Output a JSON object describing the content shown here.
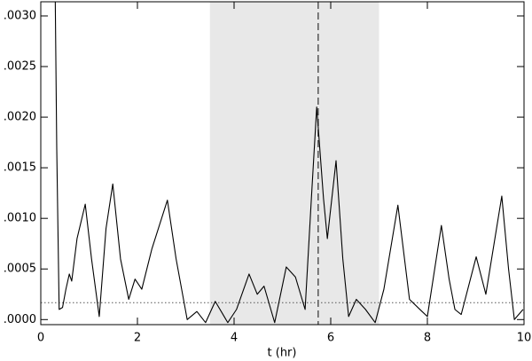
{
  "chart_data": {
    "type": "line",
    "xlabel": "t (hr)",
    "xlim": [
      0,
      10
    ],
    "xticks": [
      0,
      2,
      4,
      6,
      8,
      10
    ],
    "ylim": [
      -5e-05,
      0.00314
    ],
    "yticks": [
      {
        "value": 0,
        "label": ".0000"
      },
      {
        "value": 0.0005,
        "label": ".0005"
      },
      {
        "value": 0.001,
        "label": ".0010"
      },
      {
        "value": 0.0015,
        "label": ".0015"
      },
      {
        "value": 0.002,
        "label": ".0020"
      },
      {
        "value": 0.0025,
        "label": ".0025"
      },
      {
        "value": 0.003,
        "label": ".0030"
      }
    ],
    "shade": [
      3.5,
      7.0
    ],
    "shade_color": "#e8e8e8",
    "vline": 5.74,
    "hline": 0.000167,
    "color": "#000000",
    "x": [
      0.3,
      0.33,
      0.38,
      0.45,
      0.52,
      0.59,
      0.64,
      0.75,
      0.92,
      1.05,
      1.21,
      1.35,
      1.49,
      1.65,
      1.82,
      1.95,
      2.09,
      2.3,
      2.62,
      2.8,
      3.03,
      3.23,
      3.41,
      3.61,
      3.87,
      4.05,
      4.31,
      4.48,
      4.62,
      4.84,
      5.08,
      5.27,
      5.47,
      5.6,
      5.71,
      5.85,
      5.93,
      6.11,
      6.25,
      6.37,
      6.53,
      6.72,
      6.92,
      7.1,
      7.39,
      7.63,
      7.89,
      8.0,
      8.29,
      8.45,
      8.57,
      8.7,
      9.01,
      9.21,
      9.54,
      9.68,
      9.8,
      9.98
    ],
    "values": [
      0.00314,
      0.0017,
      0.0001,
      0.00012,
      0.0003,
      0.00045,
      0.00038,
      0.0008,
      0.00114,
      0.0006,
      3e-05,
      0.0009,
      0.00134,
      0.0006,
      0.0002,
      0.0004,
      0.0003,
      0.0007,
      0.00118,
      0.0006,
      0.0,
      8e-05,
      -3e-05,
      0.00018,
      -3e-05,
      0.0001,
      0.00045,
      0.00025,
      0.00033,
      -3e-05,
      0.00052,
      0.00042,
      0.0001,
      0.0012,
      0.0021,
      0.0012,
      0.0008,
      0.00157,
      0.0006,
      3e-05,
      0.0002,
      0.0001,
      -3e-05,
      0.0003,
      0.00113,
      0.0002,
      8e-05,
      3e-05,
      0.00093,
      0.0004,
      0.0001,
      5e-05,
      0.00062,
      0.00025,
      0.00122,
      0.0005,
      0.0,
      0.0001
    ]
  }
}
